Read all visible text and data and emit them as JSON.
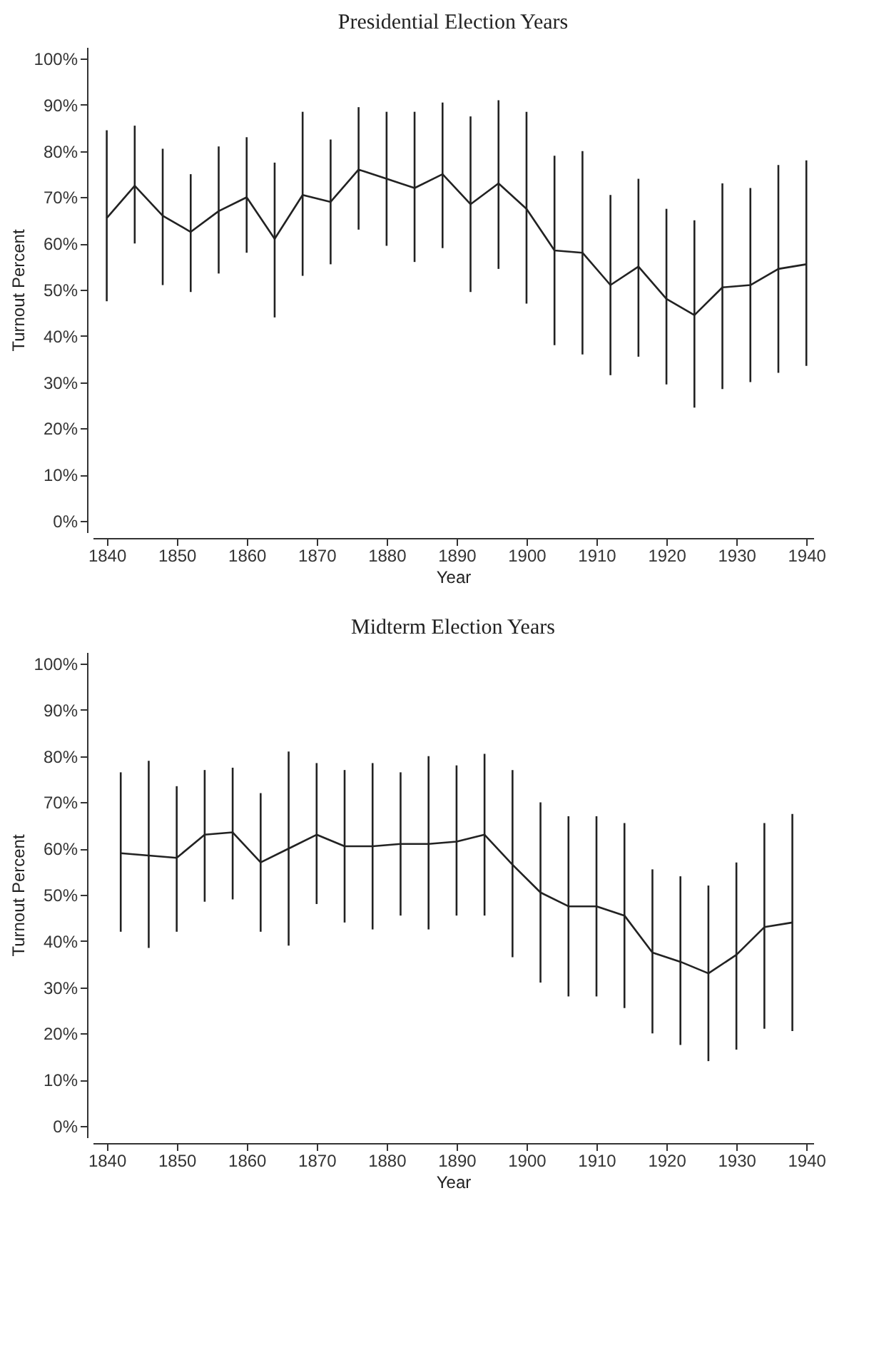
{
  "chart_data": [
    {
      "type": "line",
      "title": "Presidential Election Years",
      "xlabel": "Year",
      "ylabel": "Turnout Percent",
      "x": [
        1840,
        1844,
        1848,
        1852,
        1856,
        1860,
        1864,
        1868,
        1872,
        1876,
        1880,
        1884,
        1888,
        1892,
        1896,
        1900,
        1904,
        1908,
        1912,
        1916,
        1920,
        1924,
        1928,
        1932,
        1936,
        1940
      ],
      "series": [
        {
          "color": "#222222",
          "values": [
            65.5,
            72.5,
            66,
            62.5,
            67,
            70,
            61,
            70.5,
            69,
            76,
            74,
            72,
            75,
            68.5,
            73,
            67.5,
            58.5,
            58,
            51,
            55,
            48,
            44.5,
            50.5,
            51,
            54.5,
            55.5
          ],
          "errors": [
            [
              47.5,
              84.5
            ],
            [
              60,
              85.5
            ],
            [
              51,
              80.5
            ],
            [
              49.5,
              75
            ],
            [
              53.5,
              81
            ],
            [
              58,
              83
            ],
            [
              44,
              77.5
            ],
            [
              53,
              88.5
            ],
            [
              55.5,
              82.5
            ],
            [
              63,
              89.5
            ],
            [
              59.5,
              88.5
            ],
            [
              56,
              88.5
            ],
            [
              59,
              90.5
            ],
            [
              49.5,
              87.5
            ],
            [
              54.5,
              91
            ],
            [
              47,
              88.5
            ],
            [
              38,
              79
            ],
            [
              36,
              80
            ],
            [
              31.5,
              70.5
            ],
            [
              35.5,
              74
            ],
            [
              29.5,
              67.5
            ],
            [
              24.5,
              65
            ],
            [
              28.5,
              73
            ],
            [
              30,
              72
            ],
            [
              32,
              77
            ],
            [
              33.5,
              78
            ]
          ]
        }
      ],
      "xlim": [
        1838,
        1941
      ],
      "xticks": [
        1840,
        1850,
        1860,
        1870,
        1880,
        1890,
        1900,
        1910,
        1920,
        1930,
        1940
      ],
      "ylim": [
        -2.5,
        102.5
      ],
      "yticks": [
        {
          "value": 0,
          "label": "0%"
        },
        {
          "value": 10,
          "label": "10%"
        },
        {
          "value": 20,
          "label": "20%"
        },
        {
          "value": 30,
          "label": "30%"
        },
        {
          "value": 40,
          "label": "40%"
        },
        {
          "value": 50,
          "label": "50%"
        },
        {
          "value": 60,
          "label": "60%"
        },
        {
          "value": 70,
          "label": "70%"
        },
        {
          "value": 80,
          "label": "80%"
        },
        {
          "value": 90,
          "label": "90%"
        },
        {
          "value": 100,
          "label": "100%"
        }
      ],
      "grid": false,
      "marker": "none",
      "line_style": "solid"
    },
    {
      "type": "line",
      "title": "Midterm Election Years",
      "xlabel": "Year",
      "ylabel": "Turnout Percent",
      "x": [
        1842,
        1846,
        1850,
        1854,
        1858,
        1862,
        1866,
        1870,
        1874,
        1878,
        1882,
        1886,
        1890,
        1894,
        1898,
        1902,
        1906,
        1910,
        1914,
        1918,
        1922,
        1926,
        1930,
        1934,
        1938
      ],
      "series": [
        {
          "color": "#222222",
          "values": [
            59,
            58.5,
            58,
            63,
            63.5,
            57,
            60,
            63,
            60.5,
            60.5,
            61,
            61,
            61.5,
            63,
            56.5,
            50.5,
            47.5,
            47.5,
            45.5,
            37.5,
            35.5,
            33,
            37,
            43,
            44
          ],
          "errors": [
            [
              42,
              76.5
            ],
            [
              38.5,
              79
            ],
            [
              42,
              73.5
            ],
            [
              48.5,
              77
            ],
            [
              49,
              77.5
            ],
            [
              42,
              72
            ],
            [
              39,
              81
            ],
            [
              48,
              78.5
            ],
            [
              44,
              77
            ],
            [
              42.5,
              78.5
            ],
            [
              45.5,
              76.5
            ],
            [
              42.5,
              80
            ],
            [
              45.5,
              78
            ],
            [
              45.5,
              80.5
            ],
            [
              36.5,
              77
            ],
            [
              31,
              70
            ],
            [
              28,
              67
            ],
            [
              28,
              67
            ],
            [
              25.5,
              65.5
            ],
            [
              20,
              55.5
            ],
            [
              17.5,
              54
            ],
            [
              14,
              52
            ],
            [
              16.5,
              57
            ],
            [
              21,
              65.5
            ],
            [
              20.5,
              67.5
            ]
          ]
        }
      ],
      "xlim": [
        1838,
        1941
      ],
      "xticks": [
        1840,
        1850,
        1860,
        1870,
        1880,
        1890,
        1900,
        1910,
        1920,
        1930,
        1940
      ],
      "ylim": [
        -2.5,
        102.5
      ],
      "yticks": [
        {
          "value": 0,
          "label": "0%"
        },
        {
          "value": 10,
          "label": "10%"
        },
        {
          "value": 20,
          "label": "20%"
        },
        {
          "value": 30,
          "label": "30%"
        },
        {
          "value": 40,
          "label": "40%"
        },
        {
          "value": 50,
          "label": "50%"
        },
        {
          "value": 60,
          "label": "60%"
        },
        {
          "value": 70,
          "label": "70%"
        },
        {
          "value": 80,
          "label": "80%"
        },
        {
          "value": 90,
          "label": "90%"
        },
        {
          "value": 100,
          "label": "100%"
        }
      ],
      "grid": false,
      "marker": "none",
      "line_style": "solid"
    }
  ]
}
